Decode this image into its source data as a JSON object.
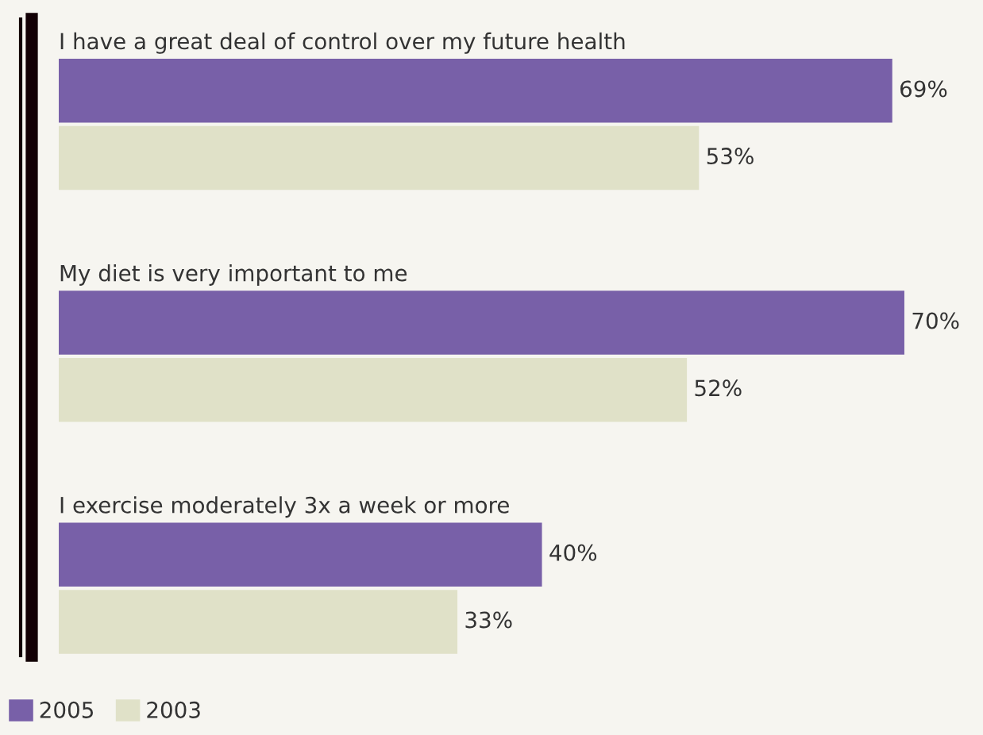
{
  "chart_data": {
    "type": "bar",
    "orientation": "horizontal",
    "categories": [
      "I have a great deal of control over my future health",
      "My diet is very important to me",
      "I exercise moderately 3x a week or more"
    ],
    "series": [
      {
        "name": "2005",
        "color": "#7860a8",
        "values": [
          69,
          70,
          40
        ],
        "value_labels": [
          "69%",
          "70%",
          "40%"
        ]
      },
      {
        "name": "2003",
        "color": "#e0e1c8",
        "values": [
          53,
          52,
          33
        ],
        "value_labels": [
          "53%",
          "52%",
          "33%"
        ]
      }
    ],
    "legend": "bottom left"
  }
}
